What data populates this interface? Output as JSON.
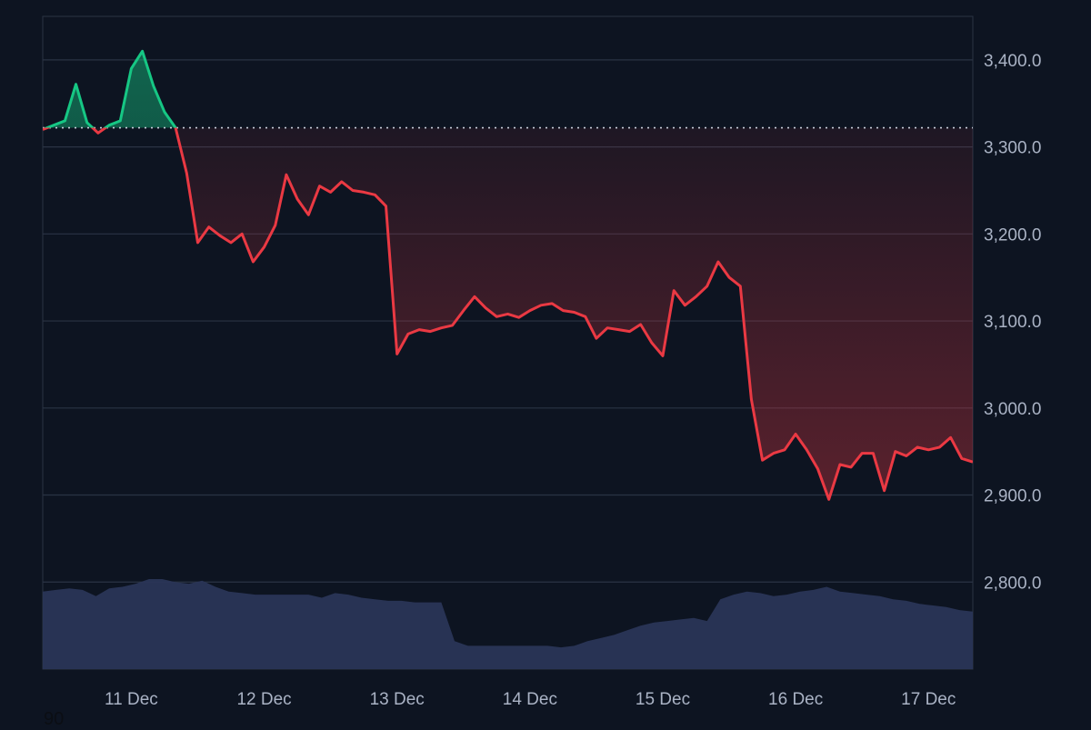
{
  "chart_data": {
    "type": "line",
    "title": "",
    "xlabel": "",
    "ylabel": "",
    "ylim": [
      2700,
      3450
    ],
    "yticks": [
      2800,
      2900,
      3000,
      3100,
      3200,
      3300,
      3400
    ],
    "ytick_labels": [
      "2,800.0",
      "2,900.0",
      "3,000.0",
      "3,100.0",
      "3,200.0",
      "3,300.0",
      "3,400.0"
    ],
    "xlim": [
      "2024-12-10 08:00",
      "2024-12-17 08:00"
    ],
    "xtick_labels": [
      "11 Dec",
      "12 Dec",
      "13 Dec",
      "14 Dec",
      "15 Dec",
      "16 Dec",
      "17 Dec"
    ],
    "baseline": 3322,
    "grid": true,
    "legend": "none",
    "colors": {
      "above": "#16c784",
      "below": "#ea3943",
      "volume": "#2a3557",
      "grid": "#2a3344",
      "baseline": "#c9cfdb"
    },
    "price": {
      "x": [
        "2024-12-10 08:00",
        "2024-12-10 10:00",
        "2024-12-10 12:00",
        "2024-12-10 14:00",
        "2024-12-10 16:00",
        "2024-12-10 18:00",
        "2024-12-10 20:00",
        "2024-12-10 22:00",
        "2024-12-11 00:00",
        "2024-12-11 02:00",
        "2024-12-11 04:00",
        "2024-12-11 06:00",
        "2024-12-11 08:00",
        "2024-12-11 10:00",
        "2024-12-11 12:00",
        "2024-12-11 14:00",
        "2024-12-11 16:00",
        "2024-12-11 18:00",
        "2024-12-11 20:00",
        "2024-12-11 22:00",
        "2024-12-12 00:00",
        "2024-12-12 02:00",
        "2024-12-12 04:00",
        "2024-12-12 06:00",
        "2024-12-12 08:00",
        "2024-12-12 10:00",
        "2024-12-12 12:00",
        "2024-12-12 14:00",
        "2024-12-12 16:00",
        "2024-12-12 18:00",
        "2024-12-12 20:00",
        "2024-12-12 22:00",
        "2024-12-13 00:00",
        "2024-12-13 02:00",
        "2024-12-13 04:00",
        "2024-12-13 06:00",
        "2024-12-13 08:00",
        "2024-12-13 10:00",
        "2024-12-13 12:00",
        "2024-12-13 14:00",
        "2024-12-13 16:00",
        "2024-12-13 18:00",
        "2024-12-13 20:00",
        "2024-12-13 22:00",
        "2024-12-14 00:00",
        "2024-12-14 02:00",
        "2024-12-14 04:00",
        "2024-12-14 06:00",
        "2024-12-14 08:00",
        "2024-12-14 10:00",
        "2024-12-14 12:00",
        "2024-12-14 14:00",
        "2024-12-14 16:00",
        "2024-12-14 18:00",
        "2024-12-14 20:00",
        "2024-12-14 22:00",
        "2024-12-15 00:00",
        "2024-12-15 02:00",
        "2024-12-15 04:00",
        "2024-12-15 06:00",
        "2024-12-15 08:00",
        "2024-12-15 10:00",
        "2024-12-15 12:00",
        "2024-12-15 14:00",
        "2024-12-15 16:00",
        "2024-12-15 18:00",
        "2024-12-15 20:00",
        "2024-12-15 22:00",
        "2024-12-16 00:00",
        "2024-12-16 02:00",
        "2024-12-16 04:00",
        "2024-12-16 06:00",
        "2024-12-16 08:00",
        "2024-12-16 10:00",
        "2024-12-16 12:00",
        "2024-12-16 14:00",
        "2024-12-16 16:00",
        "2024-12-16 18:00",
        "2024-12-16 20:00",
        "2024-12-16 22:00",
        "2024-12-17 00:00",
        "2024-12-17 02:00",
        "2024-12-17 04:00",
        "2024-12-17 06:00",
        "2024-12-17 08:00"
      ],
      "y": [
        3320,
        3325,
        3330,
        3372,
        3328,
        3316,
        3325,
        3330,
        3390,
        3410,
        3370,
        3340,
        3322,
        3270,
        3190,
        3208,
        3198,
        3190,
        3200,
        3168,
        3185,
        3210,
        3268,
        3240,
        3222,
        3255,
        3248,
        3260,
        3250,
        3248,
        3245,
        3232,
        3062,
        3085,
        3090,
        3088,
        3092,
        3095,
        3112,
        3128,
        3115,
        3105,
        3108,
        3104,
        3112,
        3118,
        3120,
        3112,
        3110,
        3105,
        3080,
        3092,
        3090,
        3088,
        3096,
        3075,
        3060,
        3135,
        3118,
        3128,
        3140,
        3168,
        3150,
        3140,
        3010,
        2940,
        2948,
        2952,
        2970,
        2952,
        2930,
        2895,
        2935,
        2932,
        2948,
        2948,
        2905,
        2950,
        2945,
        2955,
        2952,
        2955,
        2966,
        2942,
        2938
      ]
    },
    "volume": {
      "y": [
        0.5,
        0.51,
        0.52,
        0.51,
        0.47,
        0.52,
        0.53,
        0.55,
        0.58,
        0.58,
        0.56,
        0.55,
        0.57,
        0.53,
        0.5,
        0.49,
        0.48,
        0.48,
        0.48,
        0.48,
        0.48,
        0.46,
        0.49,
        0.48,
        0.46,
        0.45,
        0.44,
        0.44,
        0.43,
        0.43,
        0.43,
        0.18,
        0.15,
        0.15,
        0.15,
        0.15,
        0.15,
        0.15,
        0.15,
        0.14,
        0.15,
        0.18,
        0.2,
        0.22,
        0.25,
        0.28,
        0.3,
        0.31,
        0.32,
        0.33,
        0.31,
        0.45,
        0.48,
        0.5,
        0.49,
        0.47,
        0.48,
        0.5,
        0.51,
        0.53,
        0.5,
        0.49,
        0.48,
        0.47,
        0.45,
        0.44,
        0.42,
        0.41,
        0.4,
        0.38,
        0.37
      ]
    }
  }
}
